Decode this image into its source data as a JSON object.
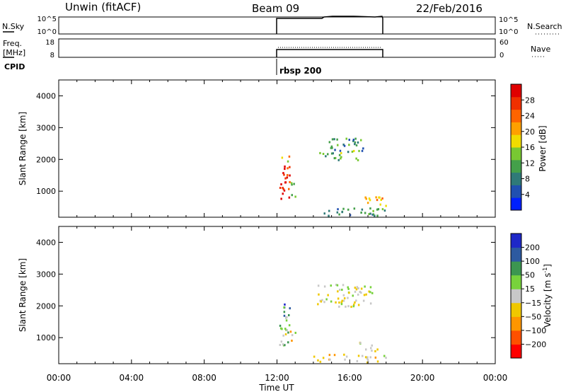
{
  "header": {
    "station": "Unwin (fitACF)",
    "beam": "Beam 09",
    "date": "22/Feb/2016"
  },
  "top_panels": {
    "nsky_label": "N.Sky",
    "nsearch_label": "N.Search",
    "freq_label_line1": "Freq.",
    "freq_label_line2": "[MHz]",
    "nave_label": "Nave",
    "cpid_label": "CPID",
    "cpid_value": "rbsp 200",
    "noise_ticks_left": [
      "10^5",
      "10^0"
    ],
    "noise_ticks_right": [
      "10^5",
      "10^0"
    ],
    "freq_ticks": [
      "18",
      "8"
    ],
    "nave_ticks": [
      "60",
      "0"
    ]
  },
  "colorbars": {
    "power": {
      "label": "Power [dB]",
      "ticks": [
        "28",
        "24",
        "20",
        "16",
        "12",
        "8",
        "4"
      ],
      "colors": [
        "#0020ff",
        "#2050b0",
        "#2f7a78",
        "#44a04a",
        "#78c832",
        "#f0dc00",
        "#ffa000",
        "#ff6400",
        "#f03000",
        "#e00000"
      ]
    },
    "velocity": {
      "label_main": "Velocity [m s",
      "label_sup": "-1",
      "label_end": "]",
      "ticks": [
        "200",
        "100",
        "50",
        "15",
        "−15",
        "−50",
        "−100",
        "−200"
      ],
      "colors": [
        "#ff0000",
        "#ff5000",
        "#ff9600",
        "#f0c800",
        "#c8c8c8",
        "#78d23c",
        "#3c9650",
        "#2d5aa0",
        "#1e28c8"
      ]
    }
  },
  "chart_data": [
    {
      "type": "heatmap",
      "panel": "power",
      "ylabel": "Slant Range [km]",
      "ylim": [
        180,
        4500
      ],
      "yticks": [
        1000,
        2000,
        3000,
        4000
      ],
      "xlim": [
        0,
        24
      ],
      "colorbar_label": "Power [dB]",
      "clim": [
        0,
        30
      ],
      "regions": [
        {
          "t0": 12.1,
          "t1": 12.7,
          "r0": 700,
          "r1": 1900,
          "value": 27
        },
        {
          "t0": 12.1,
          "t1": 12.7,
          "r0": 1900,
          "r1": 2150,
          "value": 18
        },
        {
          "t0": 12.7,
          "t1": 13.0,
          "r0": 800,
          "r1": 1300,
          "value": 14
        },
        {
          "t0": 14.2,
          "t1": 16.5,
          "r0": 2000,
          "r1": 2300,
          "value": 11
        },
        {
          "t0": 14.8,
          "t1": 16.8,
          "r0": 2300,
          "r1": 2700,
          "value": 8
        },
        {
          "t0": 16.8,
          "t1": 18.0,
          "r0": 550,
          "r1": 900,
          "value": 19
        },
        {
          "t0": 14.0,
          "t1": 18.0,
          "r0": 250,
          "r1": 500,
          "value": 9
        }
      ]
    },
    {
      "type": "heatmap",
      "panel": "velocity",
      "ylabel": "Slant Range [km]",
      "ylim": [
        180,
        4500
      ],
      "yticks": [
        1000,
        2000,
        3000,
        4000
      ],
      "xlim": [
        0,
        24
      ],
      "colorbar_label": "Velocity [m s-1]",
      "clim": [
        -250,
        250
      ],
      "regions": [
        {
          "t0": 12.1,
          "t1": 12.7,
          "r0": 700,
          "r1": 1700,
          "value": 40
        },
        {
          "t0": 12.1,
          "t1": 12.7,
          "r0": 1700,
          "r1": 2150,
          "value": 150
        },
        {
          "t0": 12.7,
          "t1": 13.0,
          "r0": 800,
          "r1": 1300,
          "value": -40
        },
        {
          "t0": 14.2,
          "t1": 17.2,
          "r0": 2000,
          "r1": 2700,
          "value": 0
        },
        {
          "t0": 16.5,
          "t1": 17.5,
          "r0": 600,
          "r1": 900,
          "value": 0
        },
        {
          "t0": 14.0,
          "t1": 18.0,
          "r0": 250,
          "r1": 500,
          "value": -40
        }
      ]
    }
  ],
  "xaxis": {
    "xlabel": "Time UT",
    "tick_labels": [
      "00:00",
      "04:00",
      "08:00",
      "12:00",
      "16:00",
      "20:00",
      "00:00"
    ],
    "tick_hours": [
      0,
      4,
      8,
      12,
      16,
      20,
      24
    ]
  }
}
